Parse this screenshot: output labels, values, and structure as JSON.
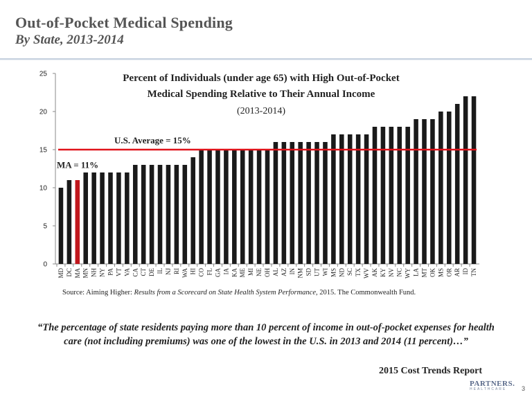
{
  "slide": {
    "title": "Out-of-Pocket Medical Spending",
    "subtitle": "By State, 2013-2014",
    "source_prefix": "Source: Aiming Higher:  ",
    "source_italic": "Results from a Scorecard on State Health System Performance",
    "source_suffix": ", 2015. The Commonwealth Fund.",
    "quote": "“The percentage of state residents paying more than 10 percent of income in out-of-pocket expenses for health care (not including premiums) was one of the lowest in the U.S. in 2013 and 2014 (11 percent)…”",
    "report": "2015 Cost Trends Report",
    "logo_top": "PARTNERS.",
    "logo_bottom": "HEALTHCARE",
    "page_number": "3"
  },
  "chart_data": {
    "type": "bar",
    "title_lines": [
      "Percent of Individuals (under age 65) with High Out-of-Pocket",
      "Medical Spending Relative to Their Annual Income",
      "(2013-2014)"
    ],
    "categories": [
      "MD",
      "DC",
      "MA",
      "MN",
      "NH",
      "NY",
      "PA",
      "VT",
      "VA",
      "CA",
      "CT",
      "DE",
      "IL",
      "NJ",
      "RI",
      "WA",
      "HI",
      "CO",
      "FL",
      "GA",
      "IA",
      "KA",
      "ME",
      "MI",
      "NE",
      "OH",
      "AL",
      "AZ",
      "IN",
      "NM",
      "SD",
      "UT",
      "WI",
      "MS",
      "ND",
      "SC",
      "TX",
      "WV",
      "AK",
      "KY",
      "NV",
      "NC",
      "WY",
      "LA",
      "MT",
      "OK",
      "MS",
      "OR",
      "AR",
      "ID",
      "TN"
    ],
    "values": [
      10,
      11,
      11,
      12,
      12,
      12,
      12,
      12,
      12,
      13,
      13,
      13,
      13,
      13,
      13,
      13,
      14,
      15,
      15,
      15,
      15,
      15,
      15,
      15,
      15,
      15,
      16,
      16,
      16,
      16,
      16,
      16,
      16,
      17,
      17,
      17,
      17,
      17,
      18,
      18,
      18,
      18,
      18,
      19,
      19,
      19,
      20,
      20,
      21,
      22,
      22
    ],
    "highlight_category": "MA",
    "bar_color": "#1a1a1a",
    "highlight_color": "#c0161c",
    "ylim": [
      0,
      25
    ],
    "yticks": [
      0,
      5,
      10,
      15,
      20,
      25
    ],
    "reference_line": {
      "value": 15,
      "label": "U.S. Average = 15%",
      "color": "#e0131a"
    },
    "ma_label": "MA = 11%",
    "grid": false
  }
}
